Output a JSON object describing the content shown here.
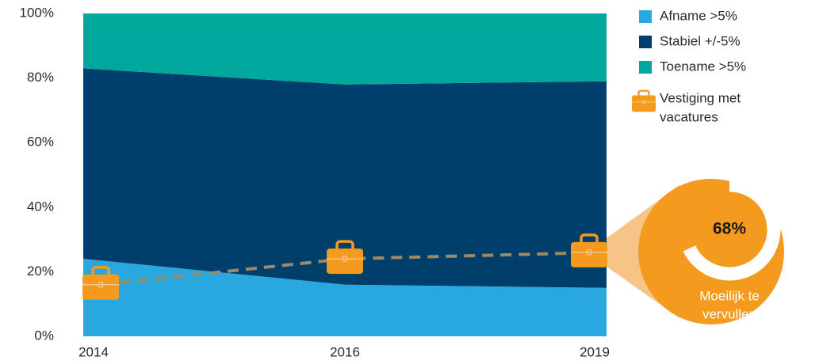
{
  "chart_data": {
    "type": "area",
    "stacked": true,
    "categories": [
      "2014",
      "2016",
      "2019"
    ],
    "ylim": [
      0,
      100
    ],
    "yticks": [
      {
        "value": 0,
        "label": "0%"
      },
      {
        "value": 20,
        "label": "20%"
      },
      {
        "value": 40,
        "label": "40%"
      },
      {
        "value": 60,
        "label": "60%"
      },
      {
        "value": 80,
        "label": "80%"
      },
      {
        "value": 100,
        "label": "100%"
      }
    ],
    "series": [
      {
        "name": "Afname >5%",
        "type": "area",
        "color": "#29a8e0",
        "values": [
          24,
          16,
          15
        ]
      },
      {
        "name": "Stabiel +/-5%",
        "type": "area",
        "color": "#003f6b",
        "values": [
          59,
          62,
          64
        ]
      },
      {
        "name": "Toename >5%",
        "type": "area",
        "color": "#00a79d",
        "values": [
          17,
          22,
          21
        ]
      },
      {
        "name": [
          "Vestiging met",
          "vacatures"
        ],
        "type": "line",
        "color": "#f39a1f",
        "line_color": "#9c8a66",
        "values": [
          16,
          24,
          26
        ]
      }
    ],
    "callout": {
      "value": 68,
      "value_label": "68%",
      "label": [
        "Moeilijk te",
        "vervullen"
      ],
      "color": "#f39a1f",
      "connector_color": "#f7c487"
    }
  }
}
